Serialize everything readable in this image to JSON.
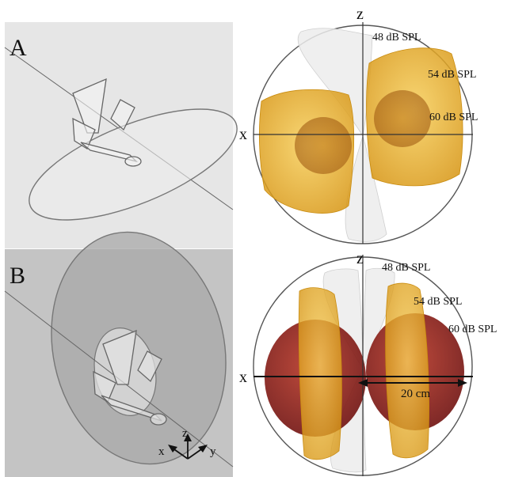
{
  "panels": {
    "a": {
      "label": "A"
    },
    "b": {
      "label": "B"
    }
  },
  "plot_a": {
    "axis_z": "z",
    "axis_x": "x",
    "level_1": "48 dB SPL",
    "level_2": "54 dB SPL",
    "level_3": "60 dB SPL"
  },
  "plot_b": {
    "axis_z": "z",
    "axis_x": "x",
    "level_1": "48 dB SPL",
    "level_2": "54 dB SPL",
    "level_3": "60 dB SPL",
    "scale_label": "20 cm"
  },
  "axes_legend": {
    "x": "x",
    "y": "y",
    "z": "z"
  },
  "colors": {
    "panel_a_bg": "#e6e6e6",
    "panel_b_bg": "#c4c4c4",
    "gold": "#f0b020",
    "dark_red": "#8a1a1a",
    "white_lobe": "#eeeeee"
  }
}
